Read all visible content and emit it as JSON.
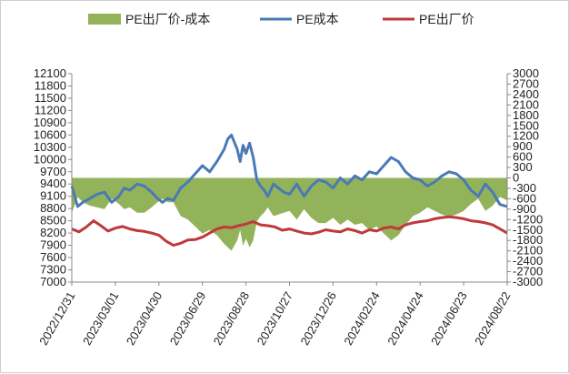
{
  "chart_data": {
    "type": "area+line",
    "title": "",
    "legend": [
      {
        "name": "PE出厂价-成本",
        "kind": "area",
        "color": "#93b35a",
        "axis": "right"
      },
      {
        "name": "PE成本",
        "kind": "line",
        "color": "#4a7ab5",
        "axis": "left"
      },
      {
        "name": "PE出厂价",
        "kind": "line",
        "color": "#c0393b",
        "axis": "left"
      }
    ],
    "left_axis": {
      "min": 7000,
      "max": 12100,
      "step": 300,
      "ticks": [
        "7000",
        "7300",
        "7600",
        "7900",
        "8200",
        "8500",
        "8800",
        "9100",
        "9400",
        "9700",
        "10000",
        "10300",
        "10600",
        "10900",
        "11200",
        "11500",
        "11800",
        "12100"
      ]
    },
    "right_axis": {
      "min": -3000,
      "max": 3000,
      "step": 300,
      "ticks": [
        "-3000",
        "-2700",
        "-2400",
        "-2100",
        "-1800",
        "-1500",
        "-1200",
        "-900",
        "-600",
        "-300",
        "0",
        "300",
        "600",
        "900",
        "1200",
        "1500",
        "1800",
        "2100",
        "2400",
        "2700",
        "3000"
      ]
    },
    "x_tick_labels": [
      "2022/12/31",
      "2023/03/01",
      "2023/04/30",
      "2023/06/29",
      "2023/08/28",
      "2023/10/27",
      "2023/12/26",
      "2024/02/24",
      "2024/04/24",
      "2024/06/23",
      "2024/08/22"
    ],
    "x_index_range": [
      0,
      600
    ],
    "series": [
      {
        "name": "PE成本",
        "x": [
          0,
          8,
          15,
          25,
          35,
          45,
          55,
          65,
          72,
          80,
          90,
          100,
          110,
          118,
          125,
          132,
          140,
          150,
          160,
          170,
          180,
          190,
          200,
          210,
          215,
          220,
          228,
          232,
          236,
          240,
          245,
          250,
          255,
          260,
          265,
          270,
          278,
          285,
          292,
          300,
          310,
          320,
          330,
          340,
          350,
          360,
          370,
          380,
          390,
          400,
          410,
          420,
          430,
          440,
          450,
          460,
          470,
          480,
          490,
          500,
          510,
          520,
          530,
          540,
          550,
          560,
          570,
          580,
          590,
          600
        ],
        "values": [
          9350,
          8850,
          8950,
          9050,
          9150,
          9200,
          8950,
          9100,
          9300,
          9250,
          9400,
          9350,
          9200,
          9050,
          8950,
          9050,
          9000,
          9300,
          9450,
          9650,
          9850,
          9700,
          9950,
          10250,
          10500,
          10600,
          10250,
          9950,
          10350,
          10150,
          10400,
          10050,
          9500,
          9350,
          9250,
          9100,
          9400,
          9300,
          9200,
          9150,
          9400,
          9100,
          9350,
          9500,
          9450,
          9300,
          9550,
          9400,
          9600,
          9500,
          9700,
          9650,
          9850,
          10050,
          9950,
          9700,
          9550,
          9500,
          9350,
          9450,
          9600,
          9700,
          9650,
          9500,
          9250,
          9100,
          9400,
          9200,
          8900,
          8850
        ]
      },
      {
        "name": "PE出厂价",
        "x": [
          0,
          10,
          20,
          30,
          40,
          50,
          60,
          70,
          80,
          90,
          100,
          110,
          120,
          130,
          140,
          150,
          160,
          170,
          180,
          190,
          200,
          210,
          220,
          230,
          240,
          250,
          260,
          270,
          280,
          290,
          300,
          310,
          320,
          330,
          340,
          350,
          360,
          370,
          380,
          390,
          400,
          410,
          420,
          430,
          440,
          450,
          460,
          470,
          480,
          490,
          500,
          510,
          520,
          530,
          540,
          550,
          560,
          570,
          580,
          590,
          600
        ],
        "values": [
          8300,
          8230,
          8350,
          8500,
          8380,
          8250,
          8320,
          8360,
          8300,
          8260,
          8240,
          8200,
          8150,
          8000,
          7900,
          7950,
          8030,
          8040,
          8100,
          8200,
          8300,
          8350,
          8330,
          8380,
          8420,
          8480,
          8400,
          8380,
          8350,
          8270,
          8300,
          8250,
          8200,
          8180,
          8220,
          8280,
          8250,
          8230,
          8300,
          8260,
          8200,
          8280,
          8250,
          8320,
          8350,
          8300,
          8400,
          8450,
          8480,
          8500,
          8550,
          8580,
          8600,
          8580,
          8550,
          8500,
          8480,
          8450,
          8400,
          8300,
          8200
        ]
      },
      {
        "name": "PE出厂价-成本",
        "x": [
          0,
          8,
          15,
          25,
          35,
          45,
          55,
          65,
          72,
          80,
          90,
          100,
          110,
          118,
          125,
          132,
          140,
          150,
          160,
          170,
          180,
          190,
          200,
          210,
          215,
          220,
          228,
          232,
          236,
          240,
          245,
          250,
          255,
          260,
          265,
          270,
          278,
          285,
          292,
          300,
          310,
          320,
          330,
          340,
          350,
          360,
          370,
          380,
          390,
          400,
          410,
          420,
          430,
          440,
          450,
          460,
          470,
          480,
          490,
          500,
          510,
          520,
          530,
          540,
          550,
          560,
          570,
          580,
          590,
          600
        ],
        "values": [
          -1000,
          -550,
          -700,
          -800,
          -850,
          -900,
          -600,
          -750,
          -900,
          -850,
          -1000,
          -1000,
          -850,
          -700,
          -600,
          -700,
          -700,
          -1100,
          -1200,
          -1400,
          -1600,
          -1500,
          -1650,
          -1900,
          -2000,
          -2100,
          -1800,
          -1500,
          -1950,
          -1750,
          -2000,
          -1800,
          -1250,
          -1100,
          -1000,
          -850,
          -1100,
          -1050,
          -1000,
          -950,
          -1200,
          -900,
          -1150,
          -1300,
          -1300,
          -1150,
          -1350,
          -1200,
          -1350,
          -1300,
          -1500,
          -1400,
          -1600,
          -1800,
          -1650,
          -1350,
          -1100,
          -1000,
          -850,
          -950,
          -1050,
          -1120,
          -1050,
          -950,
          -750,
          -600,
          -950,
          -800,
          -550,
          -650
        ]
      }
    ]
  }
}
